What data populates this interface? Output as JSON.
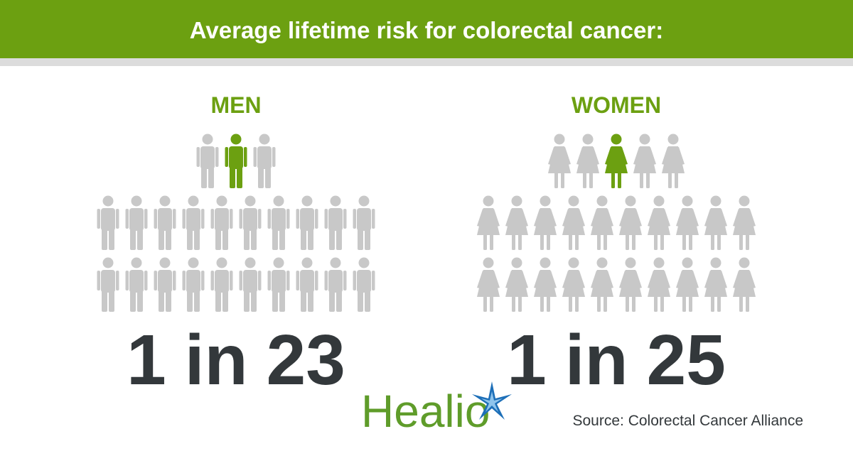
{
  "header": {
    "title": "Average lifetime risk for colorectal cancer:"
  },
  "panels": [
    {
      "label": "MEN",
      "figure": "man",
      "stat": {
        "count": 1,
        "word": "in",
        "total": 23
      }
    },
    {
      "label": "WOMEN",
      "figure": "woman",
      "stat": {
        "count": 1,
        "word": "in",
        "total": 25
      }
    }
  ],
  "footer": {
    "logo": "Healio",
    "source": "Source: Colorectal Cancer Alliance"
  }
}
